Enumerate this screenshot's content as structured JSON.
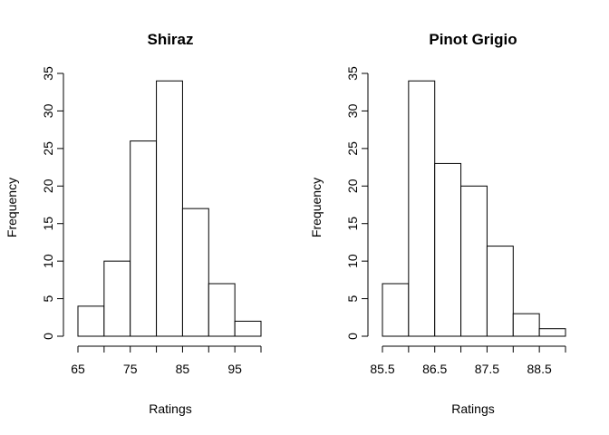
{
  "chart_data": [
    {
      "type": "bar",
      "title": "Shiraz",
      "xlabel": "Ratings",
      "ylabel": "Frequency",
      "bins": [
        {
          "from": 65,
          "to": 70,
          "value": 4
        },
        {
          "from": 70,
          "to": 75,
          "value": 10
        },
        {
          "from": 75,
          "to": 80,
          "value": 26
        },
        {
          "from": 80,
          "to": 85,
          "value": 34
        },
        {
          "from": 85,
          "to": 90,
          "value": 17
        },
        {
          "from": 90,
          "to": 95,
          "value": 7
        },
        {
          "from": 95,
          "to": 100,
          "value": 2
        }
      ],
      "xlim": [
        65,
        100
      ],
      "ylim": [
        0,
        35
      ],
      "x_ticks": [
        65,
        70,
        75,
        80,
        85,
        90,
        95,
        100
      ],
      "x_tick_labels": [
        "65",
        "",
        "75",
        "",
        "85",
        "",
        "95",
        ""
      ],
      "y_ticks": [
        0,
        5,
        10,
        15,
        20,
        25,
        30,
        35
      ],
      "y_tick_labels": [
        "0",
        "5",
        "10",
        "15",
        "20",
        "25",
        "30",
        "35"
      ],
      "grid": false
    },
    {
      "type": "bar",
      "title": "Pinot Grigio",
      "xlabel": "Ratings",
      "ylabel": "Frequency",
      "bins": [
        {
          "from": 85.5,
          "to": 86.0,
          "value": 7
        },
        {
          "from": 86.0,
          "to": 86.5,
          "value": 34
        },
        {
          "from": 86.5,
          "to": 87.0,
          "value": 23
        },
        {
          "from": 87.0,
          "to": 87.5,
          "value": 20
        },
        {
          "from": 87.5,
          "to": 88.0,
          "value": 12
        },
        {
          "from": 88.0,
          "to": 88.5,
          "value": 3
        },
        {
          "from": 88.5,
          "to": 89.0,
          "value": 1
        }
      ],
      "xlim": [
        85.5,
        89.0
      ],
      "ylim": [
        0,
        35
      ],
      "x_ticks": [
        85.5,
        86.0,
        86.5,
        87.0,
        87.5,
        88.0,
        88.5,
        89.0
      ],
      "x_tick_labels": [
        "85.5",
        "",
        "86.5",
        "",
        "87.5",
        "",
        "88.5",
        ""
      ],
      "y_ticks": [
        0,
        5,
        10,
        15,
        20,
        25,
        30,
        35
      ],
      "y_tick_labels": [
        "0",
        "5",
        "10",
        "15",
        "20",
        "25",
        "30",
        "35"
      ],
      "grid": false
    }
  ]
}
